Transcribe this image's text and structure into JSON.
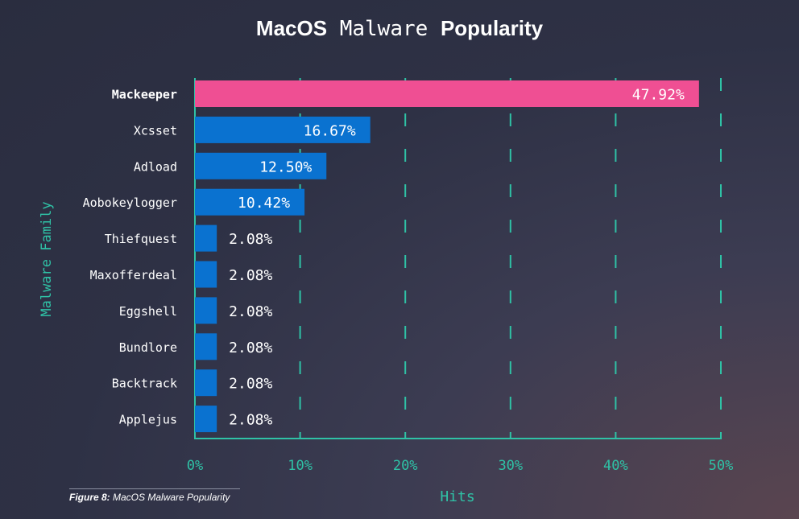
{
  "title": {
    "bold_part": "MacOS",
    "mono_part": "Malware",
    "bold_part2": "Popularity"
  },
  "caption": {
    "label": "Figure 8:",
    "text": "MacOS Malware Popularity"
  },
  "colors": {
    "highlight": "#ef4f93",
    "bar": "#0a72d0",
    "axis": "#2fc2a6",
    "text": "#ffffff",
    "background": "#2e3145"
  },
  "chart_data": {
    "type": "bar",
    "orientation": "horizontal",
    "categories": [
      "Mackeeper",
      "Xcsset",
      "Adload",
      "Aobokeylogger",
      "Thiefquest",
      "Maxofferdeal",
      "Eggshell",
      "Bundlore",
      "Backtrack",
      "Applejus"
    ],
    "values": [
      47.92,
      16.67,
      12.5,
      10.42,
      2.08,
      2.08,
      2.08,
      2.08,
      2.08,
      2.08
    ],
    "value_labels": [
      "47.92%",
      "16.67%",
      "12.50%",
      "10.42%",
      "2.08%",
      "2.08%",
      "2.08%",
      "2.08%",
      "2.08%",
      "2.08%"
    ],
    "highlighted": "Mackeeper",
    "xlabel": "Hits",
    "ylabel": "Malware Family",
    "xlim": [
      0,
      50
    ],
    "xticks": [
      0,
      10,
      20,
      30,
      40,
      50
    ],
    "xtick_labels": [
      "0%",
      "10%",
      "20%",
      "30%",
      "40%",
      "50%"
    ],
    "grid": "vertical dashed"
  }
}
